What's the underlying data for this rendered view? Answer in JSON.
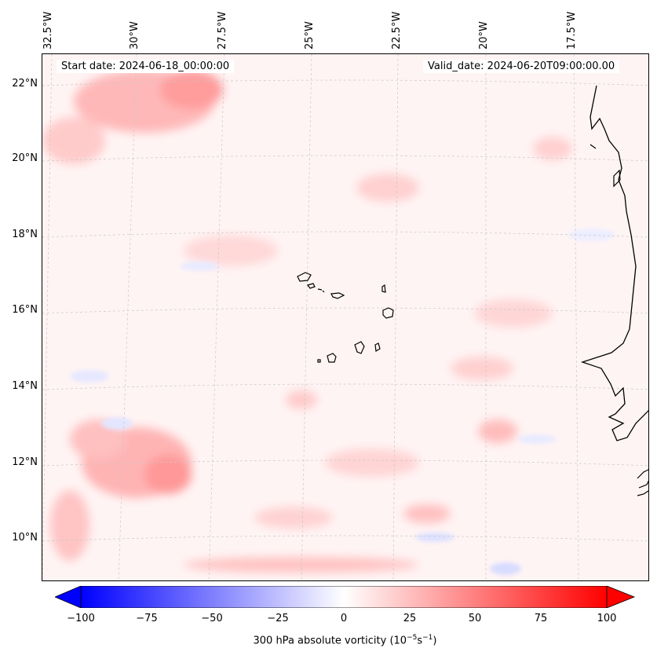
{
  "map": {
    "start_date": "Start date: 2024-06-18_00:00:00",
    "valid_date": "Valid_date: 2024-06-20T09:00:00.00",
    "lat_labels": [
      "22°N",
      "20°N",
      "18°N",
      "16°N",
      "14°N",
      "12°N",
      "10°N"
    ],
    "lon_labels": [
      "32.5°W",
      "30°W",
      "27.5°W",
      "25°W",
      "22.5°W",
      "20°W",
      "17.5°W"
    ],
    "field": "300 hPa absolute vorticity",
    "region": "Cape Verde / West African coast"
  },
  "colorbar": {
    "ticks": [
      "−100",
      "−75",
      "−50",
      "−25",
      "0",
      "25",
      "50",
      "75",
      "100"
    ],
    "label_main": "300 hPa absolute vorticity (10",
    "label_exp1": "−5",
    "label_mid": "s",
    "label_exp2": "−1",
    "label_end": ")",
    "min": -100,
    "max": 100,
    "colormap": "bwr",
    "color_min": "#0000ff",
    "color_mid": "#ffffff",
    "color_max": "#ff0000"
  }
}
